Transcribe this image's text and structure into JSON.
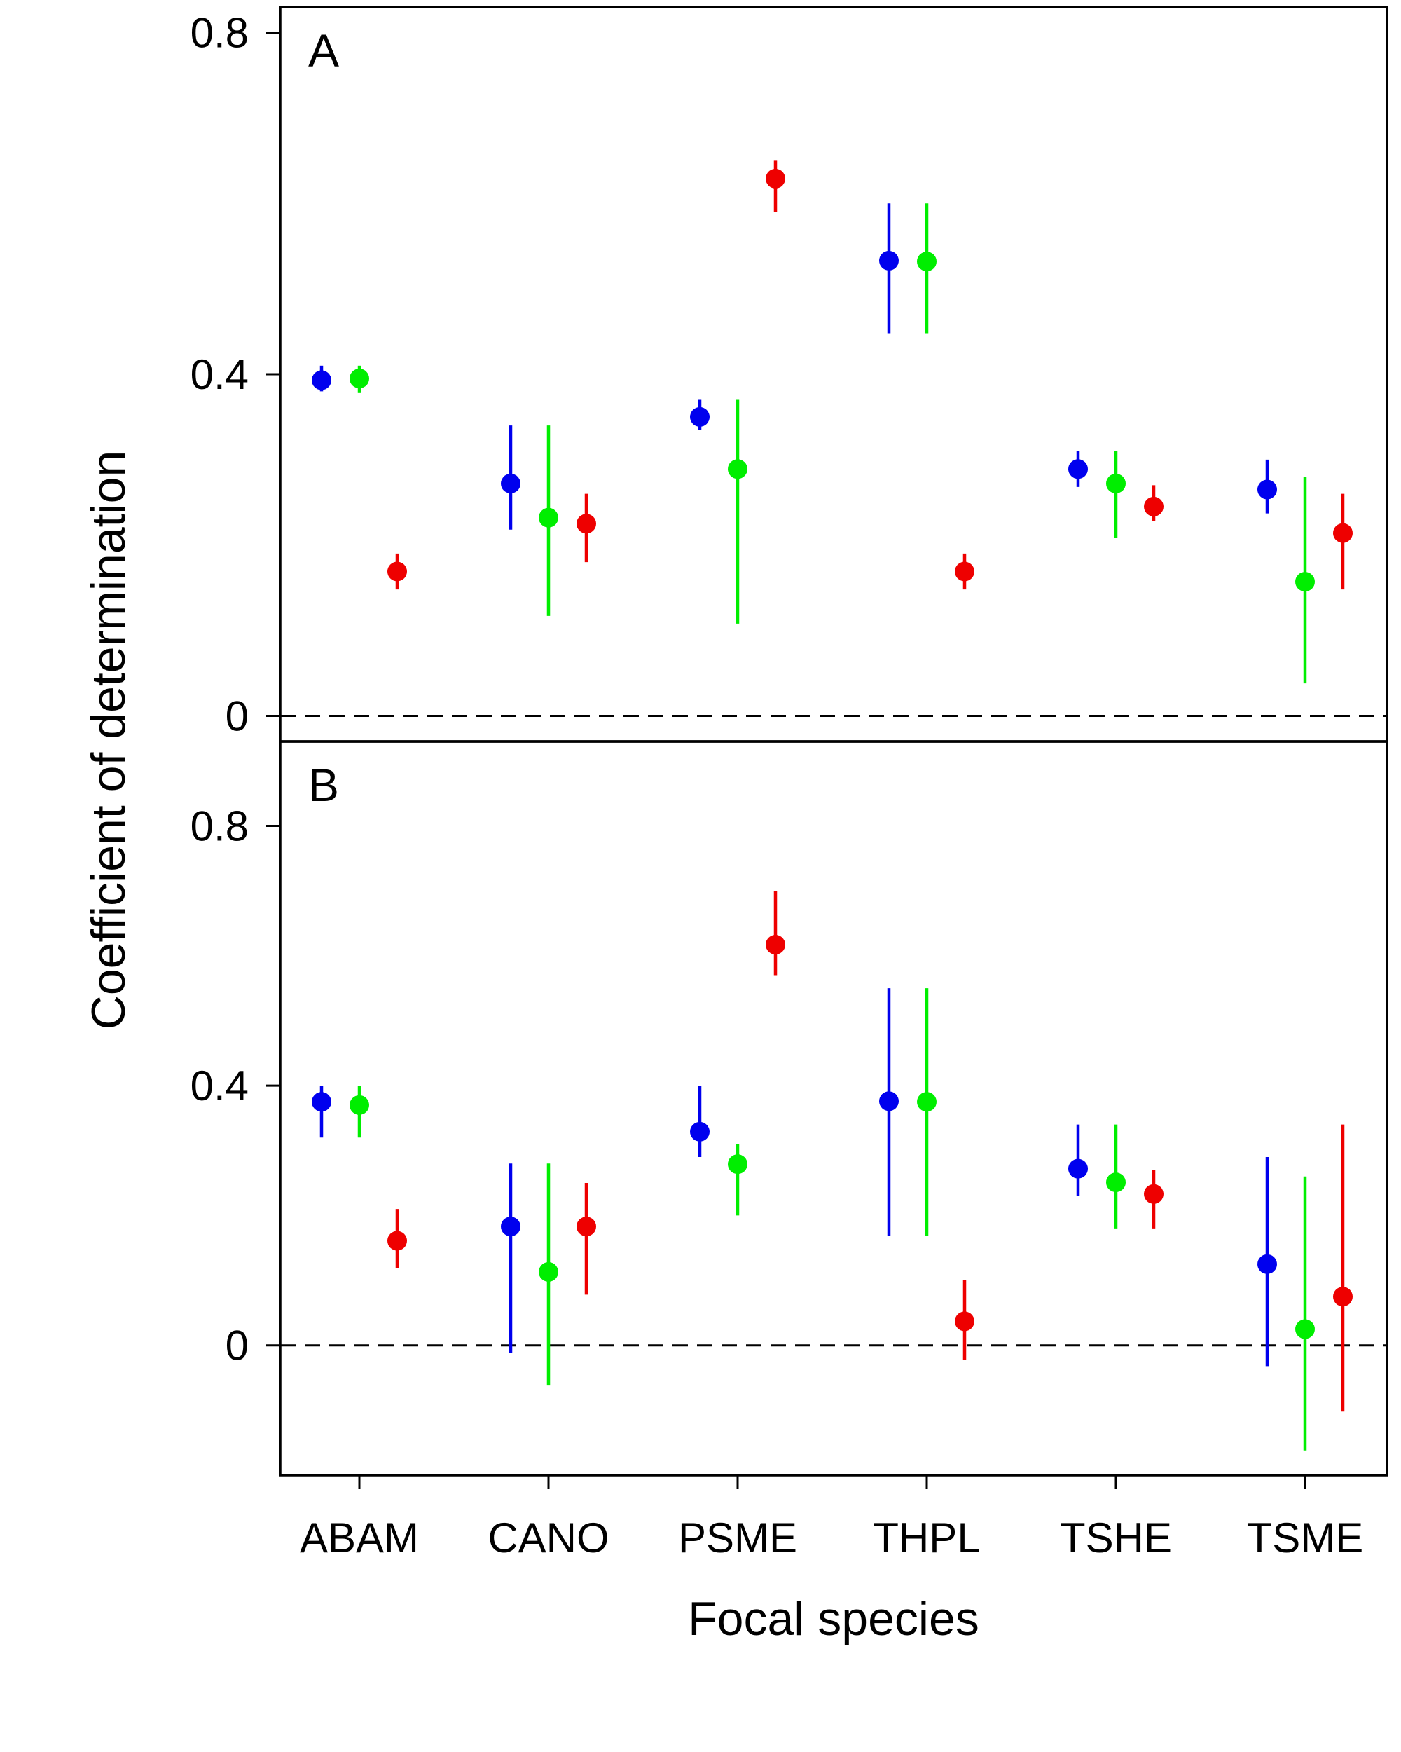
{
  "chart_data": {
    "type": "scatter",
    "xlabel": "Focal species",
    "ylabel": "Coefficient of determination",
    "categories": [
      "ABAM",
      "CANO",
      "PSME",
      "THPL",
      "TSHE",
      "TSME"
    ],
    "series_colors": [
      "#0000ee",
      "#00ee00",
      "#ee0000"
    ],
    "reference_line": {
      "y": 0,
      "style": "dashed"
    },
    "panels": [
      {
        "label": "A",
        "ylim": [
          -0.03,
          0.83
        ],
        "yticks": [
          0,
          0.4,
          0.8
        ],
        "ytick_labels": [
          "0",
          "0.4",
          "0.8"
        ],
        "series": [
          {
            "color": "#0000ee",
            "points": [
              {
                "x": "ABAM",
                "y": 0.393,
                "low": 0.38,
                "high": 0.41
              },
              {
                "x": "CANO",
                "y": 0.272,
                "low": 0.218,
                "high": 0.34
              },
              {
                "x": "PSME",
                "y": 0.35,
                "low": 0.335,
                "high": 0.37
              },
              {
                "x": "THPL",
                "y": 0.533,
                "low": 0.448,
                "high": 0.6
              },
              {
                "x": "TSHE",
                "y": 0.289,
                "low": 0.268,
                "high": 0.31
              },
              {
                "x": "TSME",
                "y": 0.265,
                "low": 0.237,
                "high": 0.3
              }
            ]
          },
          {
            "color": "#00ee00",
            "points": [
              {
                "x": "ABAM",
                "y": 0.395,
                "low": 0.378,
                "high": 0.41
              },
              {
                "x": "CANO",
                "y": 0.232,
                "low": 0.117,
                "high": 0.34
              },
              {
                "x": "PSME",
                "y": 0.289,
                "low": 0.108,
                "high": 0.37
              },
              {
                "x": "THPL",
                "y": 0.532,
                "low": 0.448,
                "high": 0.6
              },
              {
                "x": "TSHE",
                "y": 0.272,
                "low": 0.208,
                "high": 0.31
              },
              {
                "x": "TSME",
                "y": 0.157,
                "low": 0.038,
                "high": 0.28
              }
            ]
          },
          {
            "color": "#ee0000",
            "points": [
              {
                "x": "ABAM",
                "y": 0.169,
                "low": 0.148,
                "high": 0.19
              },
              {
                "x": "CANO",
                "y": 0.225,
                "low": 0.18,
                "high": 0.26
              },
              {
                "x": "PSME",
                "y": 0.629,
                "low": 0.59,
                "high": 0.65
              },
              {
                "x": "THPL",
                "y": 0.169,
                "low": 0.148,
                "high": 0.19
              },
              {
                "x": "TSHE",
                "y": 0.245,
                "low": 0.228,
                "high": 0.27
              },
              {
                "x": "TSME",
                "y": 0.214,
                "low": 0.148,
                "high": 0.26
              }
            ]
          }
        ]
      },
      {
        "label": "B",
        "ylim": [
          -0.2,
          0.93
        ],
        "yticks": [
          0,
          0.4,
          0.8
        ],
        "ytick_labels": [
          "0",
          "0.4",
          "0.8"
        ],
        "series": [
          {
            "color": "#0000ee",
            "points": [
              {
                "x": "ABAM",
                "y": 0.375,
                "low": 0.32,
                "high": 0.4
              },
              {
                "x": "CANO",
                "y": 0.183,
                "low": -0.012,
                "high": 0.28
              },
              {
                "x": "PSME",
                "y": 0.329,
                "low": 0.29,
                "high": 0.4
              },
              {
                "x": "THPL",
                "y": 0.376,
                "low": 0.168,
                "high": 0.55
              },
              {
                "x": "TSHE",
                "y": 0.272,
                "low": 0.23,
                "high": 0.34
              },
              {
                "x": "TSME",
                "y": 0.125,
                "low": -0.032,
                "high": 0.29
              }
            ]
          },
          {
            "color": "#00ee00",
            "points": [
              {
                "x": "ABAM",
                "y": 0.37,
                "low": 0.32,
                "high": 0.4
              },
              {
                "x": "CANO",
                "y": 0.113,
                "low": -0.062,
                "high": 0.28
              },
              {
                "x": "PSME",
                "y": 0.279,
                "low": 0.2,
                "high": 0.31
              },
              {
                "x": "THPL",
                "y": 0.375,
                "low": 0.168,
                "high": 0.55
              },
              {
                "x": "TSHE",
                "y": 0.251,
                "low": 0.18,
                "high": 0.34
              },
              {
                "x": "TSME",
                "y": 0.025,
                "low": -0.162,
                "high": 0.26
              }
            ]
          },
          {
            "color": "#ee0000",
            "points": [
              {
                "x": "ABAM",
                "y": 0.161,
                "low": 0.119,
                "high": 0.21
              },
              {
                "x": "CANO",
                "y": 0.183,
                "low": 0.078,
                "high": 0.25
              },
              {
                "x": "PSME",
                "y": 0.617,
                "low": 0.57,
                "high": 0.7
              },
              {
                "x": "THPL",
                "y": 0.037,
                "low": -0.022,
                "high": 0.1
              },
              {
                "x": "TSHE",
                "y": 0.233,
                "low": 0.18,
                "high": 0.27
              },
              {
                "x": "TSME",
                "y": 0.075,
                "low": -0.102,
                "high": 0.34
              }
            ]
          }
        ]
      }
    ]
  }
}
